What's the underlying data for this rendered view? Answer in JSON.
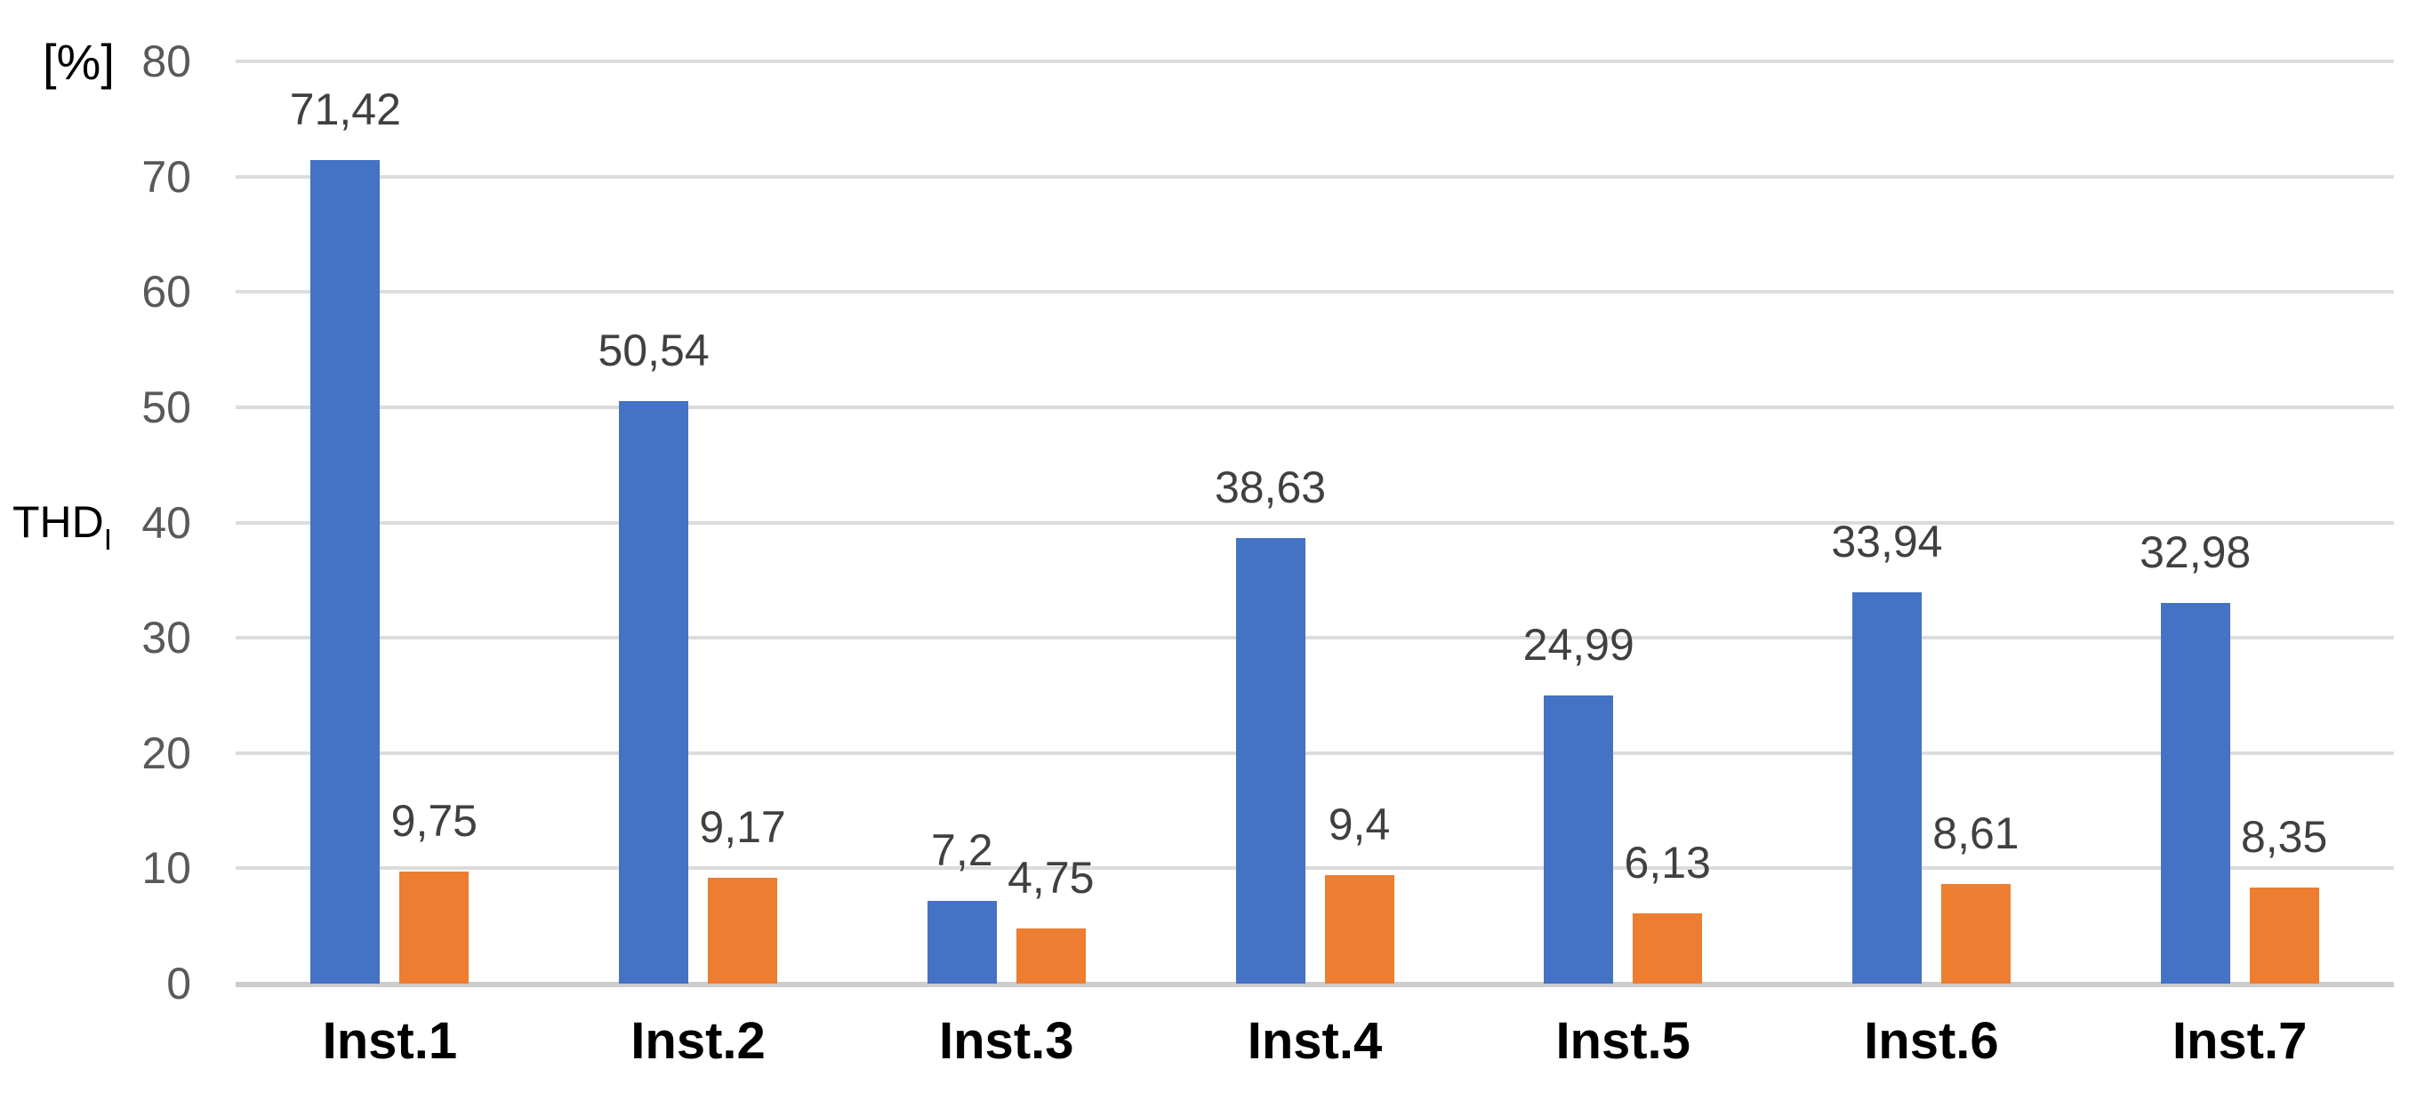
{
  "chart_data": {
    "type": "bar",
    "title": "",
    "y_unit_label": "[%]",
    "ylabel": "THD",
    "ylabel_subscript": "I",
    "xlabel": "",
    "categories": [
      "Inst.1",
      "Inst.2",
      "Inst.3",
      "Inst.4",
      "Inst.5",
      "Inst.6",
      "Inst.7"
    ],
    "series": [
      {
        "name": "blue-series",
        "color": "#4472C4",
        "values": [
          71.42,
          50.54,
          7.2,
          38.63,
          24.99,
          33.94,
          32.98
        ],
        "labels": [
          "71,42",
          "50,54",
          "7,2",
          "38,63",
          "24,99",
          "33,94",
          "32,98"
        ]
      },
      {
        "name": "orange-series",
        "color": "#ED7D31",
        "values": [
          9.75,
          9.17,
          4.75,
          9.4,
          6.13,
          8.61,
          8.35
        ],
        "labels": [
          "9,75",
          "9,17",
          "4,75",
          "9,4",
          "6,13",
          "8,61",
          "8,35"
        ]
      }
    ],
    "ylim": [
      0,
      80
    ],
    "yticks": [
      "0",
      "10",
      "20",
      "30",
      "40",
      "50",
      "60",
      "70",
      "80"
    ],
    "grid": true,
    "legend": false,
    "decimal_separator": ",",
    "gridline_color": "#DCDCDC",
    "tick_label_color": "#595959",
    "data_label_color": "#404040"
  }
}
